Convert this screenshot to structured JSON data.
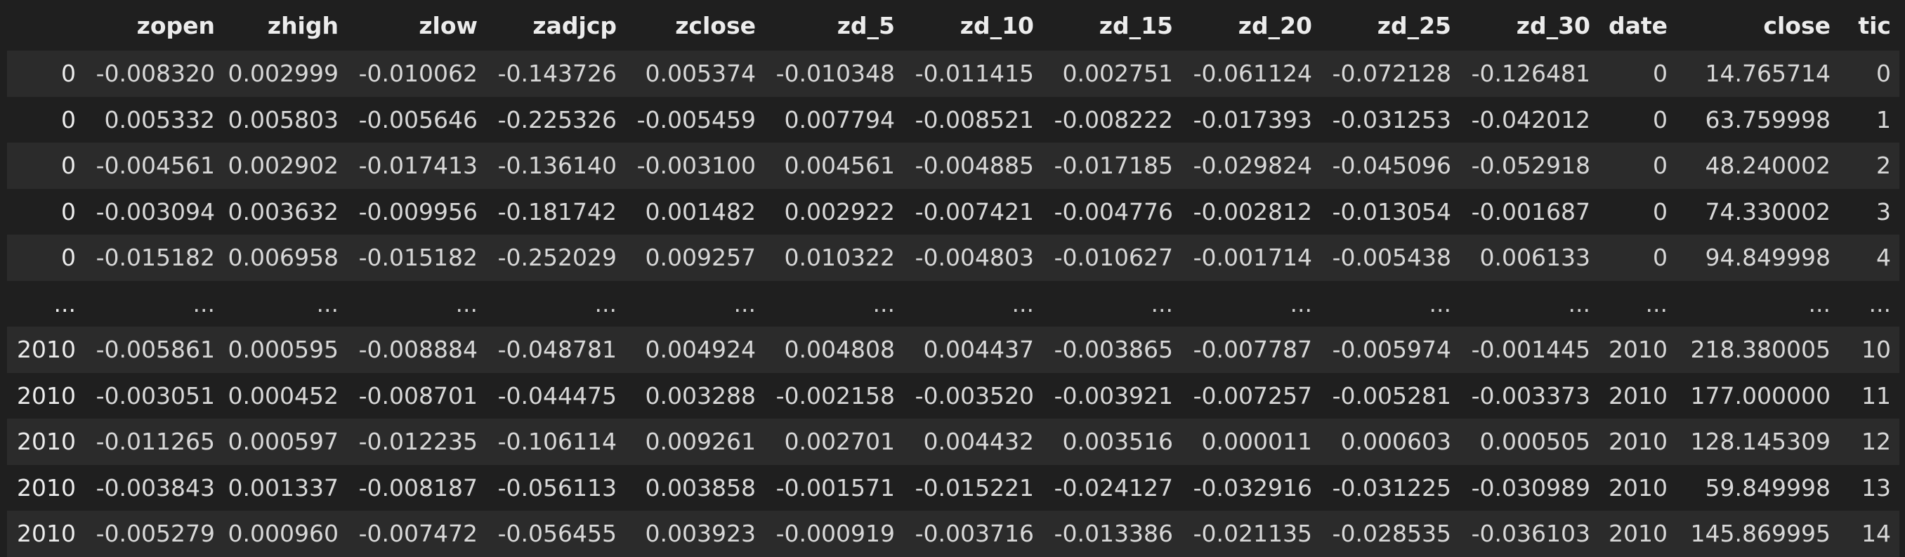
{
  "table": {
    "columns": [
      "",
      "zopen",
      "zhigh",
      "zlow",
      "zadjcp",
      "zclose",
      "zd_5",
      "zd_10",
      "zd_15",
      "zd_20",
      "zd_25",
      "zd_30",
      "date",
      "close",
      "tic"
    ],
    "rows": [
      [
        "0",
        "-0.008320",
        "0.002999",
        "-0.010062",
        "-0.143726",
        "0.005374",
        "-0.010348",
        "-0.011415",
        "0.002751",
        "-0.061124",
        "-0.072128",
        "-0.126481",
        "0",
        "14.765714",
        "0"
      ],
      [
        "0",
        "0.005332",
        "0.005803",
        "-0.005646",
        "-0.225326",
        "-0.005459",
        "0.007794",
        "-0.008521",
        "-0.008222",
        "-0.017393",
        "-0.031253",
        "-0.042012",
        "0",
        "63.759998",
        "1"
      ],
      [
        "0",
        "-0.004561",
        "0.002902",
        "-0.017413",
        "-0.136140",
        "-0.003100",
        "0.004561",
        "-0.004885",
        "-0.017185",
        "-0.029824",
        "-0.045096",
        "-0.052918",
        "0",
        "48.240002",
        "2"
      ],
      [
        "0",
        "-0.003094",
        "0.003632",
        "-0.009956",
        "-0.181742",
        "0.001482",
        "0.002922",
        "-0.007421",
        "-0.004776",
        "-0.002812",
        "-0.013054",
        "-0.001687",
        "0",
        "74.330002",
        "3"
      ],
      [
        "0",
        "-0.015182",
        "0.006958",
        "-0.015182",
        "-0.252029",
        "0.009257",
        "0.010322",
        "-0.004803",
        "-0.010627",
        "-0.001714",
        "-0.005438",
        "0.006133",
        "0",
        "94.849998",
        "4"
      ],
      [
        "...",
        "...",
        "...",
        "...",
        "...",
        "...",
        "...",
        "...",
        "...",
        "...",
        "...",
        "...",
        "...",
        "...",
        "..."
      ],
      [
        "2010",
        "-0.005861",
        "0.000595",
        "-0.008884",
        "-0.048781",
        "0.004924",
        "0.004808",
        "0.004437",
        "-0.003865",
        "-0.007787",
        "-0.005974",
        "-0.001445",
        "2010",
        "218.380005",
        "10"
      ],
      [
        "2010",
        "-0.003051",
        "0.000452",
        "-0.008701",
        "-0.044475",
        "0.003288",
        "-0.002158",
        "-0.003520",
        "-0.003921",
        "-0.007257",
        "-0.005281",
        "-0.003373",
        "2010",
        "177.000000",
        "11"
      ],
      [
        "2010",
        "-0.011265",
        "0.000597",
        "-0.012235",
        "-0.106114",
        "0.009261",
        "0.002701",
        "0.004432",
        "0.003516",
        "0.000011",
        "0.000603",
        "0.000505",
        "2010",
        "128.145309",
        "12"
      ],
      [
        "2010",
        "-0.003843",
        "0.001337",
        "-0.008187",
        "-0.056113",
        "0.003858",
        "-0.001571",
        "-0.015221",
        "-0.024127",
        "-0.032916",
        "-0.031225",
        "-0.030989",
        "2010",
        "59.849998",
        "13"
      ],
      [
        "2010",
        "-0.005279",
        "0.000960",
        "-0.007472",
        "-0.056455",
        "0.003923",
        "-0.000919",
        "-0.003716",
        "-0.013386",
        "-0.021135",
        "-0.028535",
        "-0.036103",
        "2010",
        "145.869995",
        "14"
      ]
    ]
  }
}
